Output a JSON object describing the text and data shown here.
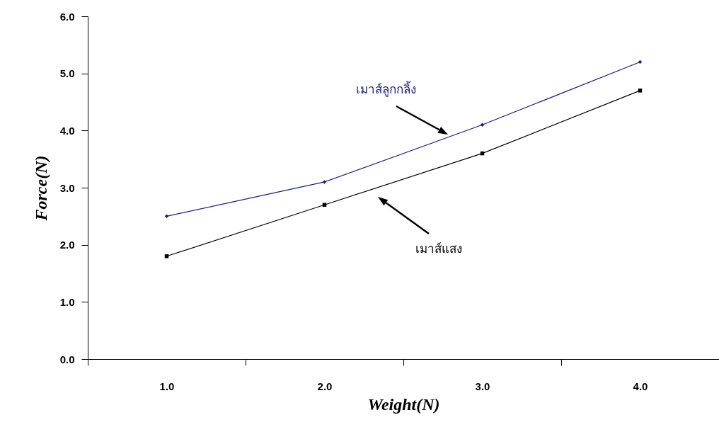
{
  "chart_data": {
    "type": "line",
    "xlabel": "Weight(N)",
    "ylabel": "Force(N)",
    "categories": [
      "1.0",
      "2.0",
      "3.0",
      "4.0"
    ],
    "series": [
      {
        "name": "เมาส์ลูกกลิ้ง",
        "color": "#1c1c8a",
        "marker": "diamond",
        "values": [
          2.5,
          3.1,
          4.1,
          5.2
        ]
      },
      {
        "name": "เมาส์แสง",
        "color": "#000000",
        "values": [
          1.8,
          2.7,
          3.6,
          4.7
        ]
      }
    ],
    "ylim": [
      0,
      6
    ],
    "yticks": [
      {
        "value": 0,
        "label": "0.0"
      },
      {
        "value": 1,
        "label": "1.0"
      },
      {
        "value": 2,
        "label": "2.0"
      },
      {
        "value": 3,
        "label": "3.0"
      },
      {
        "value": 4,
        "label": "4.0"
      },
      {
        "value": 5,
        "label": "5.0"
      },
      {
        "value": 6,
        "label": "6.0"
      }
    ],
    "marker": "square",
    "line_style": "solid",
    "grid": false
  }
}
